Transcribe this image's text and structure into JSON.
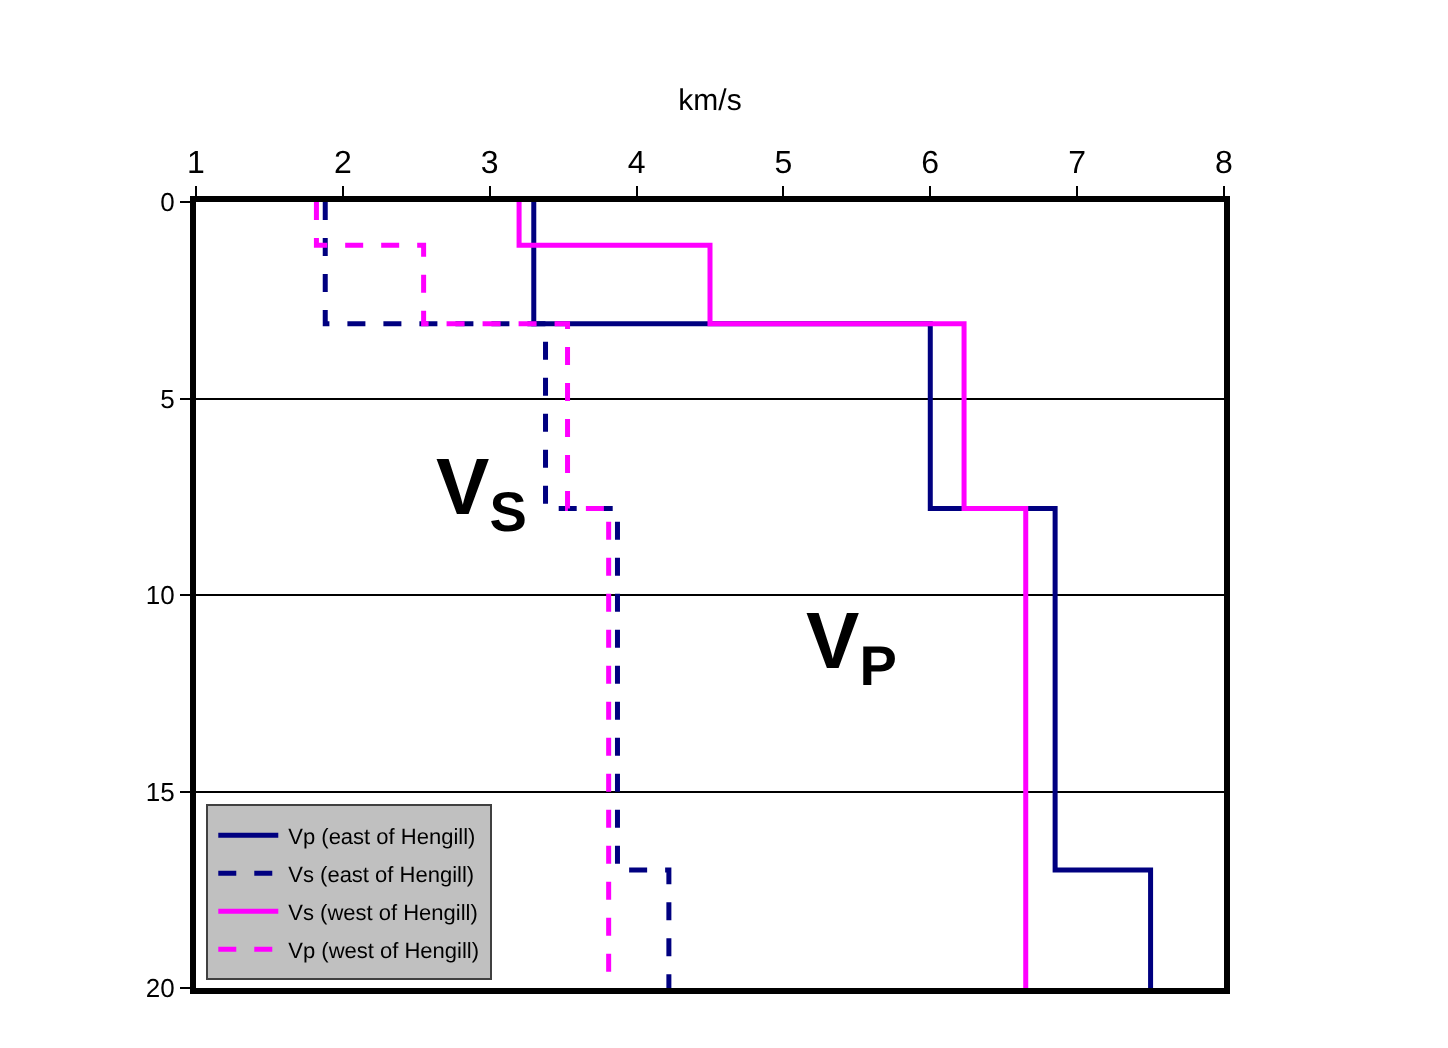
{
  "chart_data": {
    "type": "line",
    "xlabel": "km/s",
    "xlim": [
      1,
      8
    ],
    "xticks": [
      1,
      2,
      3,
      4,
      5,
      6,
      7,
      8
    ],
    "ylim": [
      20,
      0
    ],
    "yticks": [
      0,
      5,
      10,
      15,
      20
    ],
    "grid": "y",
    "legend": "bottom left",
    "marker": "none",
    "series": [
      {
        "name": "Vp (east of Hengill)",
        "color": "#000080",
        "line_style": "solid",
        "x": [
          3.3,
          3.3,
          6.0,
          6.0,
          6.85,
          6.85,
          7.5,
          7.5
        ],
        "values": [
          0,
          3.1,
          3.1,
          7.8,
          7.8,
          17.0,
          17.0,
          20
        ]
      },
      {
        "name": "Vs (east of Hengill)",
        "color": "#000080",
        "line_style": "dashed",
        "x": [
          1.88,
          1.88,
          3.38,
          3.38,
          3.87,
          3.87,
          4.22,
          4.22
        ],
        "values": [
          0,
          3.1,
          3.1,
          7.8,
          7.8,
          17.0,
          17.0,
          20
        ]
      },
      {
        "name": "Vs (west of Hengill)",
        "color": "#ff00ff",
        "line_style": "solid",
        "x": [
          3.2,
          3.2,
          4.5,
          4.5,
          6.23,
          6.23,
          6.65,
          6.65
        ],
        "values": [
          0,
          1.1,
          1.1,
          3.1,
          3.1,
          7.8,
          7.8,
          20
        ]
      },
      {
        "name": "Vp (west of Hengill)",
        "color": "#ff00ff",
        "line_style": "dashed",
        "x": [
          1.82,
          1.82,
          2.55,
          2.55,
          3.53,
          3.53,
          3.81,
          3.81
        ],
        "values": [
          0,
          1.1,
          1.1,
          3.1,
          3.1,
          7.8,
          7.8,
          20
        ]
      }
    ],
    "annotations": [
      "V$_{S}$",
      "V$_{P}$"
    ]
  }
}
